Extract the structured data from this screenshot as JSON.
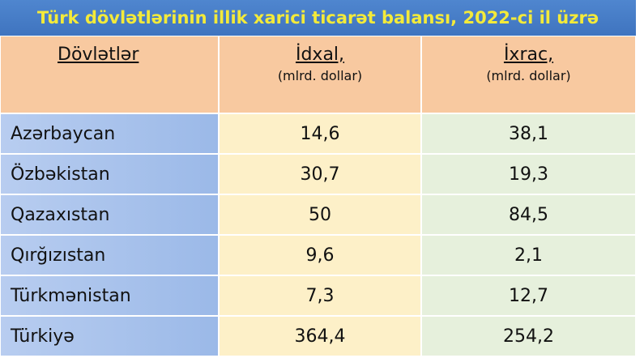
{
  "title": "Türk dövlətlərinin illik xarici ticarət balansı, 2022-ci il üzrə",
  "table": {
    "headers": [
      {
        "label": "Dövlətlər"
      },
      {
        "label": "İdxal,",
        "unit": "(mlrd. dollar)"
      },
      {
        "label": "İxrac,",
        "unit": "(mlrd. dollar)"
      }
    ],
    "rows": [
      [
        "Azərbaycan",
        "14,6",
        "38,1"
      ],
      [
        "Özbəkistan",
        "30,7",
        "19,3"
      ],
      [
        "Qazaxıstan",
        "50",
        "84,5"
      ],
      [
        "Qırğızıstan",
        "9,6",
        "2,1"
      ],
      [
        "Türkmənistan",
        "7,3",
        "12,7"
      ],
      [
        "Türkiyə",
        "364,4",
        "254,2"
      ]
    ]
  }
}
